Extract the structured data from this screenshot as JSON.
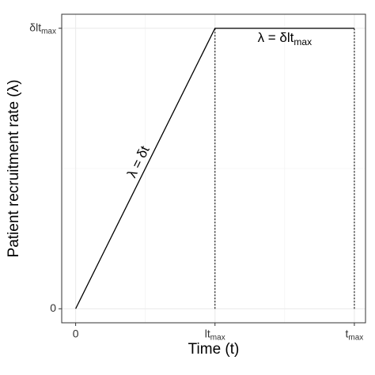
{
  "chart_data": {
    "type": "line",
    "x_label": "Time (t)",
    "y_label": "Patient recruitment rate (λ)",
    "x": [
      0,
      0.5,
      1
    ],
    "series": [
      {
        "color": "#000000",
        "values": [
          0,
          1,
          1
        ]
      }
    ],
    "xlim": [
      -0.05,
      1.04
    ],
    "ylim": [
      -0.05,
      1.05
    ],
    "xticks": [
      0,
      {
        "value": 0.5,
        "label": "lt",
        "subscript": "max"
      },
      {
        "value": 1,
        "label": "t",
        "subscript": "max"
      }
    ],
    "yticks": [
      0,
      {
        "value": 1,
        "label": "δlt",
        "subscript": "max"
      }
    ],
    "vlines": [
      0.5,
      1
    ],
    "grid": true,
    "annotations": [
      {
        "text": "λ = δt"
      },
      {
        "text": "λ = δlt",
        "subscript": "max"
      }
    ]
  }
}
